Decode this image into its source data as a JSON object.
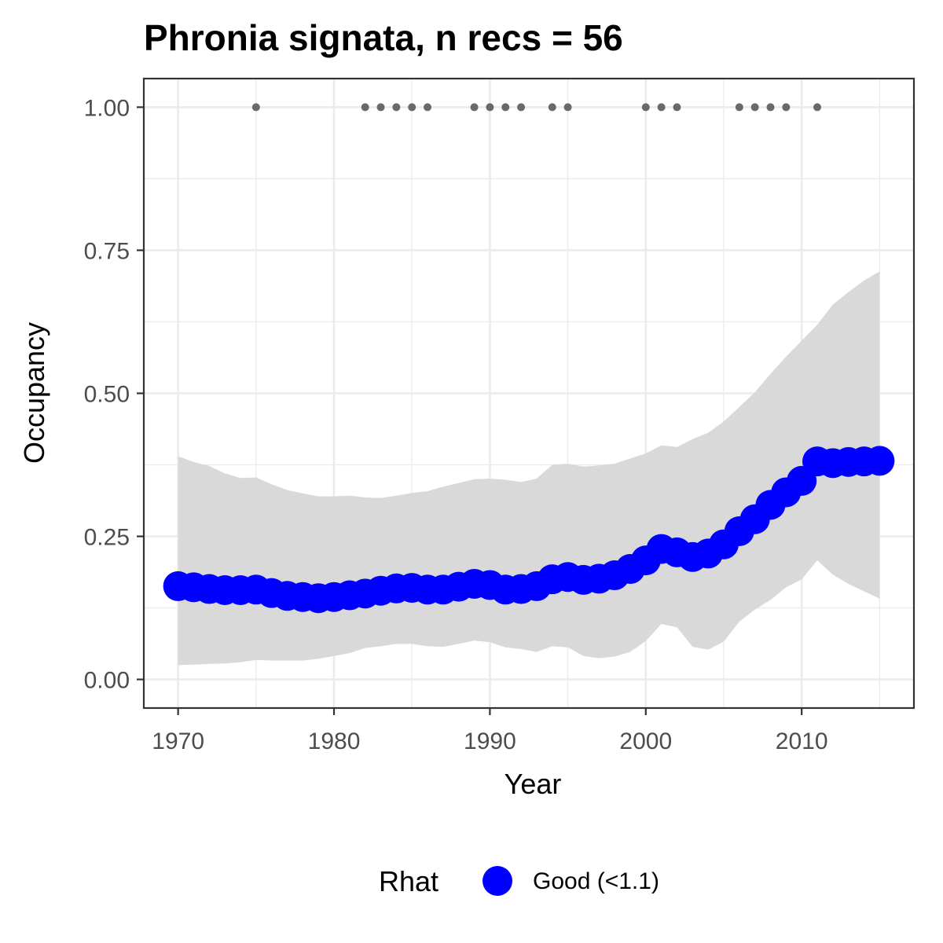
{
  "chart_data": {
    "type": "line",
    "title": "Phronia signata, n recs = 56",
    "xlabel": "Year",
    "ylabel": "Occupancy",
    "xlim": [
      1967.8,
      2017.2
    ],
    "ylim": [
      -0.05,
      1.05
    ],
    "x_ticks": [
      1970,
      1980,
      1990,
      2000,
      2010
    ],
    "x_tick_labels": [
      "1970",
      "1980",
      "1990",
      "2000",
      "2010"
    ],
    "y_ticks": [
      0,
      0.25,
      0.5,
      0.75,
      1.0
    ],
    "y_tick_labels": [
      "0.00",
      "0.25",
      "0.50",
      "0.75",
      "1.00"
    ],
    "grid": true,
    "legend": {
      "title": "Rhat",
      "position": "bottom",
      "entries": [
        {
          "label": "Good (<1.1)",
          "color": "#0000ff"
        }
      ]
    },
    "colors": {
      "series": "#0000ff",
      "ribbon": "#d9d9d9",
      "records": "#696969",
      "grid": "#ebebeb",
      "border": "#333333"
    },
    "series": [
      {
        "name": "Good (<1.1)",
        "x": [
          1970,
          1971,
          1972,
          1973,
          1974,
          1975,
          1976,
          1977,
          1978,
          1979,
          1980,
          1981,
          1982,
          1983,
          1984,
          1985,
          1986,
          1987,
          1988,
          1989,
          1990,
          1991,
          1992,
          1993,
          1994,
          1995,
          1996,
          1997,
          1998,
          1999,
          2000,
          2001,
          2002,
          2003,
          2004,
          2005,
          2006,
          2007,
          2008,
          2009,
          2010,
          2011,
          2012,
          2013,
          2014,
          2015
        ],
        "y": [
          0.163,
          0.161,
          0.158,
          0.156,
          0.156,
          0.157,
          0.151,
          0.146,
          0.144,
          0.142,
          0.144,
          0.147,
          0.15,
          0.155,
          0.159,
          0.16,
          0.157,
          0.157,
          0.162,
          0.167,
          0.165,
          0.157,
          0.158,
          0.163,
          0.175,
          0.179,
          0.174,
          0.176,
          0.182,
          0.193,
          0.208,
          0.228,
          0.222,
          0.214,
          0.22,
          0.236,
          0.259,
          0.28,
          0.305,
          0.327,
          0.347,
          0.381,
          0.378,
          0.38,
          0.381,
          0.382
        ]
      }
    ],
    "ribbon": {
      "x": [
        1970,
        1971,
        1972,
        1973,
        1974,
        1975,
        1976,
        1977,
        1978,
        1979,
        1980,
        1981,
        1982,
        1983,
        1984,
        1985,
        1986,
        1987,
        1988,
        1989,
        1990,
        1991,
        1992,
        1993,
        1994,
        1995,
        1996,
        1997,
        1998,
        1999,
        2000,
        2001,
        2002,
        2003,
        2004,
        2005,
        2006,
        2007,
        2008,
        2009,
        2010,
        2011,
        2012,
        2013,
        2014,
        2015
      ],
      "lower": [
        0.025,
        0.026,
        0.027,
        0.028,
        0.03,
        0.034,
        0.033,
        0.033,
        0.033,
        0.036,
        0.041,
        0.046,
        0.055,
        0.058,
        0.062,
        0.062,
        0.058,
        0.057,
        0.062,
        0.068,
        0.065,
        0.056,
        0.053,
        0.048,
        0.058,
        0.056,
        0.041,
        0.037,
        0.04,
        0.048,
        0.067,
        0.097,
        0.091,
        0.057,
        0.052,
        0.066,
        0.101,
        0.122,
        0.139,
        0.161,
        0.175,
        0.208,
        0.183,
        0.167,
        0.154,
        0.141
      ],
      "upper": [
        0.39,
        0.38,
        0.373,
        0.36,
        0.352,
        0.353,
        0.341,
        0.331,
        0.325,
        0.32,
        0.32,
        0.321,
        0.318,
        0.317,
        0.321,
        0.326,
        0.329,
        0.337,
        0.343,
        0.35,
        0.351,
        0.349,
        0.345,
        0.351,
        0.375,
        0.377,
        0.372,
        0.374,
        0.377,
        0.386,
        0.395,
        0.409,
        0.406,
        0.42,
        0.431,
        0.451,
        0.476,
        0.502,
        0.534,
        0.564,
        0.592,
        0.62,
        0.655,
        0.677,
        0.697,
        0.713
      ]
    },
    "records": {
      "y": 1.0,
      "x": [
        1975,
        1982,
        1983,
        1984,
        1985,
        1986,
        1989,
        1990,
        1991,
        1992,
        1994,
        1995,
        2000,
        2001,
        2002,
        2006,
        2007,
        2008,
        2009,
        2011
      ]
    }
  }
}
